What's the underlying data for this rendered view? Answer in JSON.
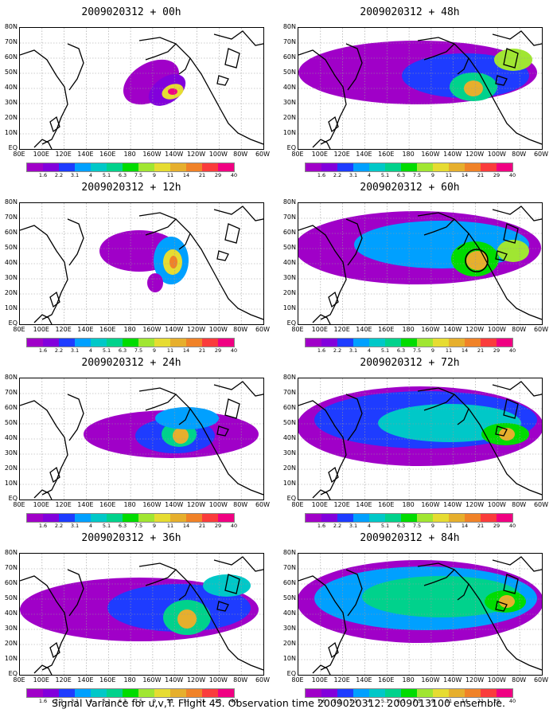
{
  "panels": [
    {
      "title": "2009020312 + 00h",
      "level": 0
    },
    {
      "title": "2009020312 + 12h",
      "level": 1
    },
    {
      "title": "2009020312 + 24h",
      "level": 2
    },
    {
      "title": "2009020312 + 36h",
      "level": 3
    },
    {
      "title": "2009020312 + 48h",
      "level": 4
    },
    {
      "title": "2009020312 + 60h",
      "level": 5
    },
    {
      "title": "2009020312 + 72h",
      "level": 6
    },
    {
      "title": "2009020312 + 84h",
      "level": 7
    }
  ],
  "lat_labels": [
    "80N",
    "70N",
    "60N",
    "50N",
    "40N",
    "30N",
    "20N",
    "10N",
    "EQ"
  ],
  "lon_labels": [
    "80E",
    "100E",
    "120E",
    "140E",
    "160E",
    "180",
    "160W",
    "140W",
    "120W",
    "100W",
    "80W",
    "60W"
  ],
  "colorbar": {
    "labels": [
      "1.6",
      "2.2",
      "3.1",
      "4",
      "5.1",
      "6.3",
      "7.5",
      "9",
      "11",
      "14",
      "21",
      "29",
      "40"
    ],
    "colors": [
      "#a000c8",
      "#8200dc",
      "#1e3cff",
      "#00a0ff",
      "#00c8c8",
      "#00d28c",
      "#00dc00",
      "#a0e632",
      "#e6dc32",
      "#e6af2d",
      "#f08228",
      "#fa3c3c",
      "#f00082"
    ]
  },
  "footer": "Signal Variance for u,v,T. Flight 45. Observation time 2009020312. 2009013100 ensemble."
}
